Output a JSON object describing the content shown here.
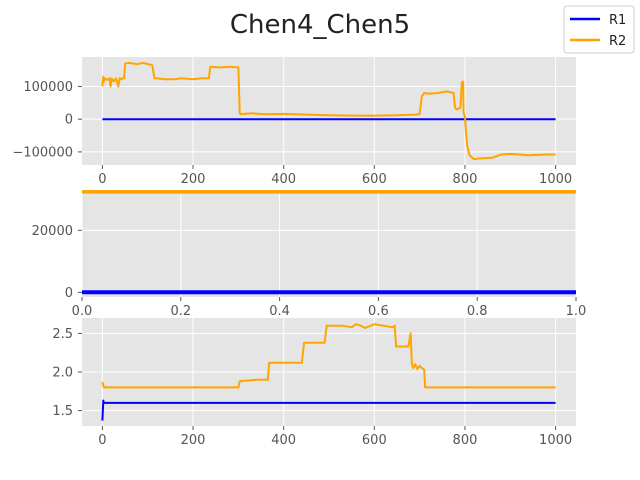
{
  "title": "Chen4_Chen5",
  "colors": {
    "R1": "#0000ff",
    "R2": "#ffa500",
    "panel_bg": "#e5e5e5",
    "grid": "#ffffff"
  },
  "legend": {
    "placement": "top-right",
    "entries": [
      "R1",
      "R2"
    ]
  },
  "chart_data": [
    {
      "type": "line",
      "xlim": [
        -45,
        1045
      ],
      "ylim": [
        -140000,
        190000
      ],
      "xticks": [
        0,
        200,
        400,
        600,
        800,
        1000
      ],
      "yticks": [
        -100000,
        0,
        100000
      ],
      "xtick_labels": [
        "0",
        "200",
        "400",
        "600",
        "800",
        "1000"
      ],
      "ytick_labels": [
        "−100000",
        "0",
        "100000"
      ],
      "grid": true,
      "series": [
        {
          "name": "R1",
          "x": [
            0,
            1000
          ],
          "y": [
            0,
            0
          ]
        },
        {
          "name": "R2",
          "x": [
            0,
            2,
            3,
            5,
            10,
            15,
            18,
            20,
            25,
            30,
            35,
            38,
            40,
            45,
            48,
            50,
            60,
            75,
            90,
            110,
            115,
            116,
            140,
            160,
            175,
            200,
            220,
            235,
            238,
            260,
            280,
            300,
            303,
            305,
            330,
            360,
            400,
            450,
            500,
            560,
            600,
            650,
            690,
            700,
            705,
            710,
            720,
            740,
            760,
            775,
            778,
            782,
            790,
            793,
            796,
            797,
            800,
            803,
            805,
            810,
            820,
            830,
            860,
            880,
            900,
            920,
            940,
            960,
            980,
            1000
          ],
          "y": [
            100000,
            130000,
            115000,
            125000,
            120000,
            125000,
            100000,
            125000,
            115000,
            125000,
            100000,
            125000,
            122000,
            125000,
            125000,
            170000,
            172000,
            168000,
            172000,
            165000,
            125000,
            125000,
            122000,
            122000,
            125000,
            122000,
            125000,
            125000,
            160000,
            158000,
            160000,
            158000,
            20000,
            15000,
            18000,
            15000,
            16000,
            14000,
            12000,
            11000,
            11000,
            12000,
            14000,
            15000,
            70000,
            80000,
            78000,
            80000,
            85000,
            80000,
            35000,
            30000,
            35000,
            112000,
            115000,
            20000,
            5000,
            -50000,
            -80000,
            -110000,
            -122000,
            -120000,
            -118000,
            -108000,
            -106000,
            -108000,
            -110000,
            -109000,
            -108000,
            -108000
          ]
        }
      ]
    },
    {
      "type": "line",
      "xlim": [
        0,
        1
      ],
      "ylim": [
        -1500,
        33000
      ],
      "xticks": [
        0,
        0.2,
        0.4,
        0.6,
        0.8,
        1.0
      ],
      "yticks": [
        0,
        20000
      ],
      "xtick_labels": [
        "0.0",
        "0.2",
        "0.4",
        "0.6",
        "0.8",
        "1.0"
      ],
      "ytick_labels": [
        "0",
        "20000"
      ],
      "grid": true,
      "series": [
        {
          "name": "R1",
          "x": [
            0,
            1
          ],
          "y": [
            0,
            0
          ]
        },
        {
          "name": "R2",
          "x": [
            0,
            1
          ],
          "y": [
            32500,
            32500
          ]
        }
      ]
    },
    {
      "type": "line",
      "xlim": [
        -45,
        1045
      ],
      "ylim": [
        1.3,
        2.7
      ],
      "xticks": [
        0,
        200,
        400,
        600,
        800,
        1000
      ],
      "yticks": [
        1.5,
        2.0,
        2.5
      ],
      "xtick_labels": [
        "0",
        "200",
        "400",
        "600",
        "800",
        "1000"
      ],
      "ytick_labels": [
        "1.5",
        "2.0",
        "2.5"
      ],
      "grid": true,
      "series": [
        {
          "name": "R1",
          "x": [
            0,
            2,
            3,
            5,
            1000
          ],
          "y": [
            1.37,
            1.63,
            1.6,
            1.6,
            1.6
          ]
        },
        {
          "name": "R2",
          "x": [
            0,
            3,
            5,
            300,
            303,
            340,
            365,
            368,
            440,
            445,
            490,
            495,
            530,
            550,
            560,
            570,
            580,
            600,
            620,
            640,
            645,
            648,
            675,
            680,
            683,
            686,
            690,
            695,
            700,
            705,
            710,
            712,
            1000
          ],
          "y": [
            1.87,
            1.8,
            1.8,
            1.8,
            1.88,
            1.9,
            1.9,
            2.12,
            2.12,
            2.38,
            2.38,
            2.6,
            2.6,
            2.58,
            2.62,
            2.6,
            2.57,
            2.62,
            2.6,
            2.58,
            2.6,
            2.33,
            2.33,
            2.5,
            2.1,
            2.05,
            2.1,
            2.04,
            2.08,
            2.05,
            2.03,
            1.8,
            1.8
          ]
        }
      ]
    }
  ]
}
